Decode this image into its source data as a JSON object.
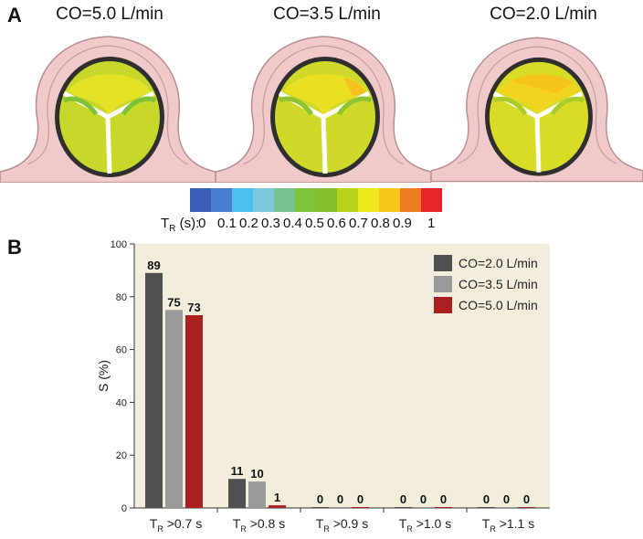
{
  "panel_a": {
    "letter": "A",
    "titles": [
      "CO=5.0 L/min",
      "CO=3.5 L/min",
      "CO=2.0 L/min"
    ]
  },
  "colorbar": {
    "label_main": "T",
    "label_sub": "R",
    "label_rest": " (s):",
    "ticks": [
      "0",
      "0.1",
      "0.2",
      "0.3",
      "0.4",
      "0.5",
      "0.6",
      "0.7",
      "0.8",
      "0.9",
      "1"
    ],
    "colors": [
      "#3a5fb5",
      "#4a7fd0",
      "#4cc0ef",
      "#7dc8dc",
      "#76c290",
      "#7ec43a",
      "#86bf2c",
      "#b9d21c",
      "#f0e61e",
      "#f7c81a",
      "#ef7b22",
      "#e8262a"
    ]
  },
  "panel_b": {
    "letter": "B"
  },
  "chart_data": {
    "type": "bar",
    "categories": [
      {
        "main": "T",
        "sub": "R",
        "rest": " >0.7 s"
      },
      {
        "main": "T",
        "sub": "R",
        "rest": " >0.8 s"
      },
      {
        "main": "T",
        "sub": "R",
        "rest": " >0.9 s"
      },
      {
        "main": "T",
        "sub": "R",
        "rest": " >1.0 s"
      },
      {
        "main": "T",
        "sub": "R",
        "rest": " >1.1 s"
      }
    ],
    "series": [
      {
        "name": "CO=2.0 L/min",
        "color": "#505050",
        "values": [
          89,
          11,
          0,
          0,
          0
        ]
      },
      {
        "name": "CO=3.5 L/min",
        "color": "#9a9a9a",
        "values": [
          75,
          10,
          0,
          0,
          0
        ]
      },
      {
        "name": "CO=5.0 L/min",
        "color": "#aa1f1f",
        "values": [
          73,
          1,
          0,
          0,
          0
        ]
      }
    ],
    "ylabel": "S (%)",
    "ylim": [
      0,
      100
    ],
    "yticks": [
      0,
      20,
      40,
      60,
      80,
      100
    ],
    "legend_position": "top-right",
    "plot_background": "#f3eedb"
  }
}
